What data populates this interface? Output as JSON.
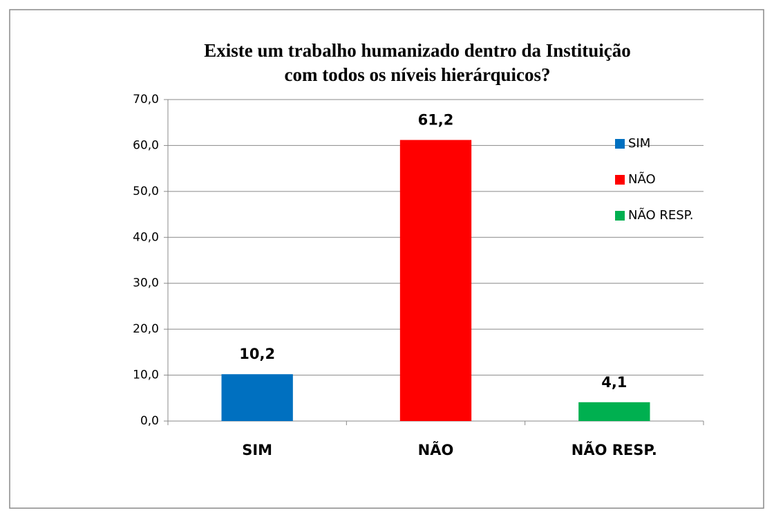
{
  "chart_data": {
    "type": "bar",
    "title": [
      "Existe um trabalho humanizado dentro da Instituição",
      "com todos os níveis hierárquicos?"
    ],
    "categories": [
      "SIM",
      "NÃO",
      "NÃO RESP."
    ],
    "values": [
      10.2,
      61.2,
      4.1
    ],
    "value_labels": [
      "10,2",
      "61,2",
      "4,1"
    ],
    "colors": [
      "#0070c0",
      "#ff0000",
      "#00b050"
    ],
    "ylim": [
      0,
      70
    ],
    "yticks": [
      {
        "value": 0,
        "label": "0,0"
      },
      {
        "value": 10,
        "label": "10,0"
      },
      {
        "value": 20,
        "label": "20,0"
      },
      {
        "value": 30,
        "label": "30,0"
      },
      {
        "value": 40,
        "label": "40,0"
      },
      {
        "value": 50,
        "label": "50,0"
      },
      {
        "value": 60,
        "label": "60,0"
      },
      {
        "value": 70,
        "label": "70,0"
      }
    ],
    "grid": true,
    "legend": "right"
  }
}
